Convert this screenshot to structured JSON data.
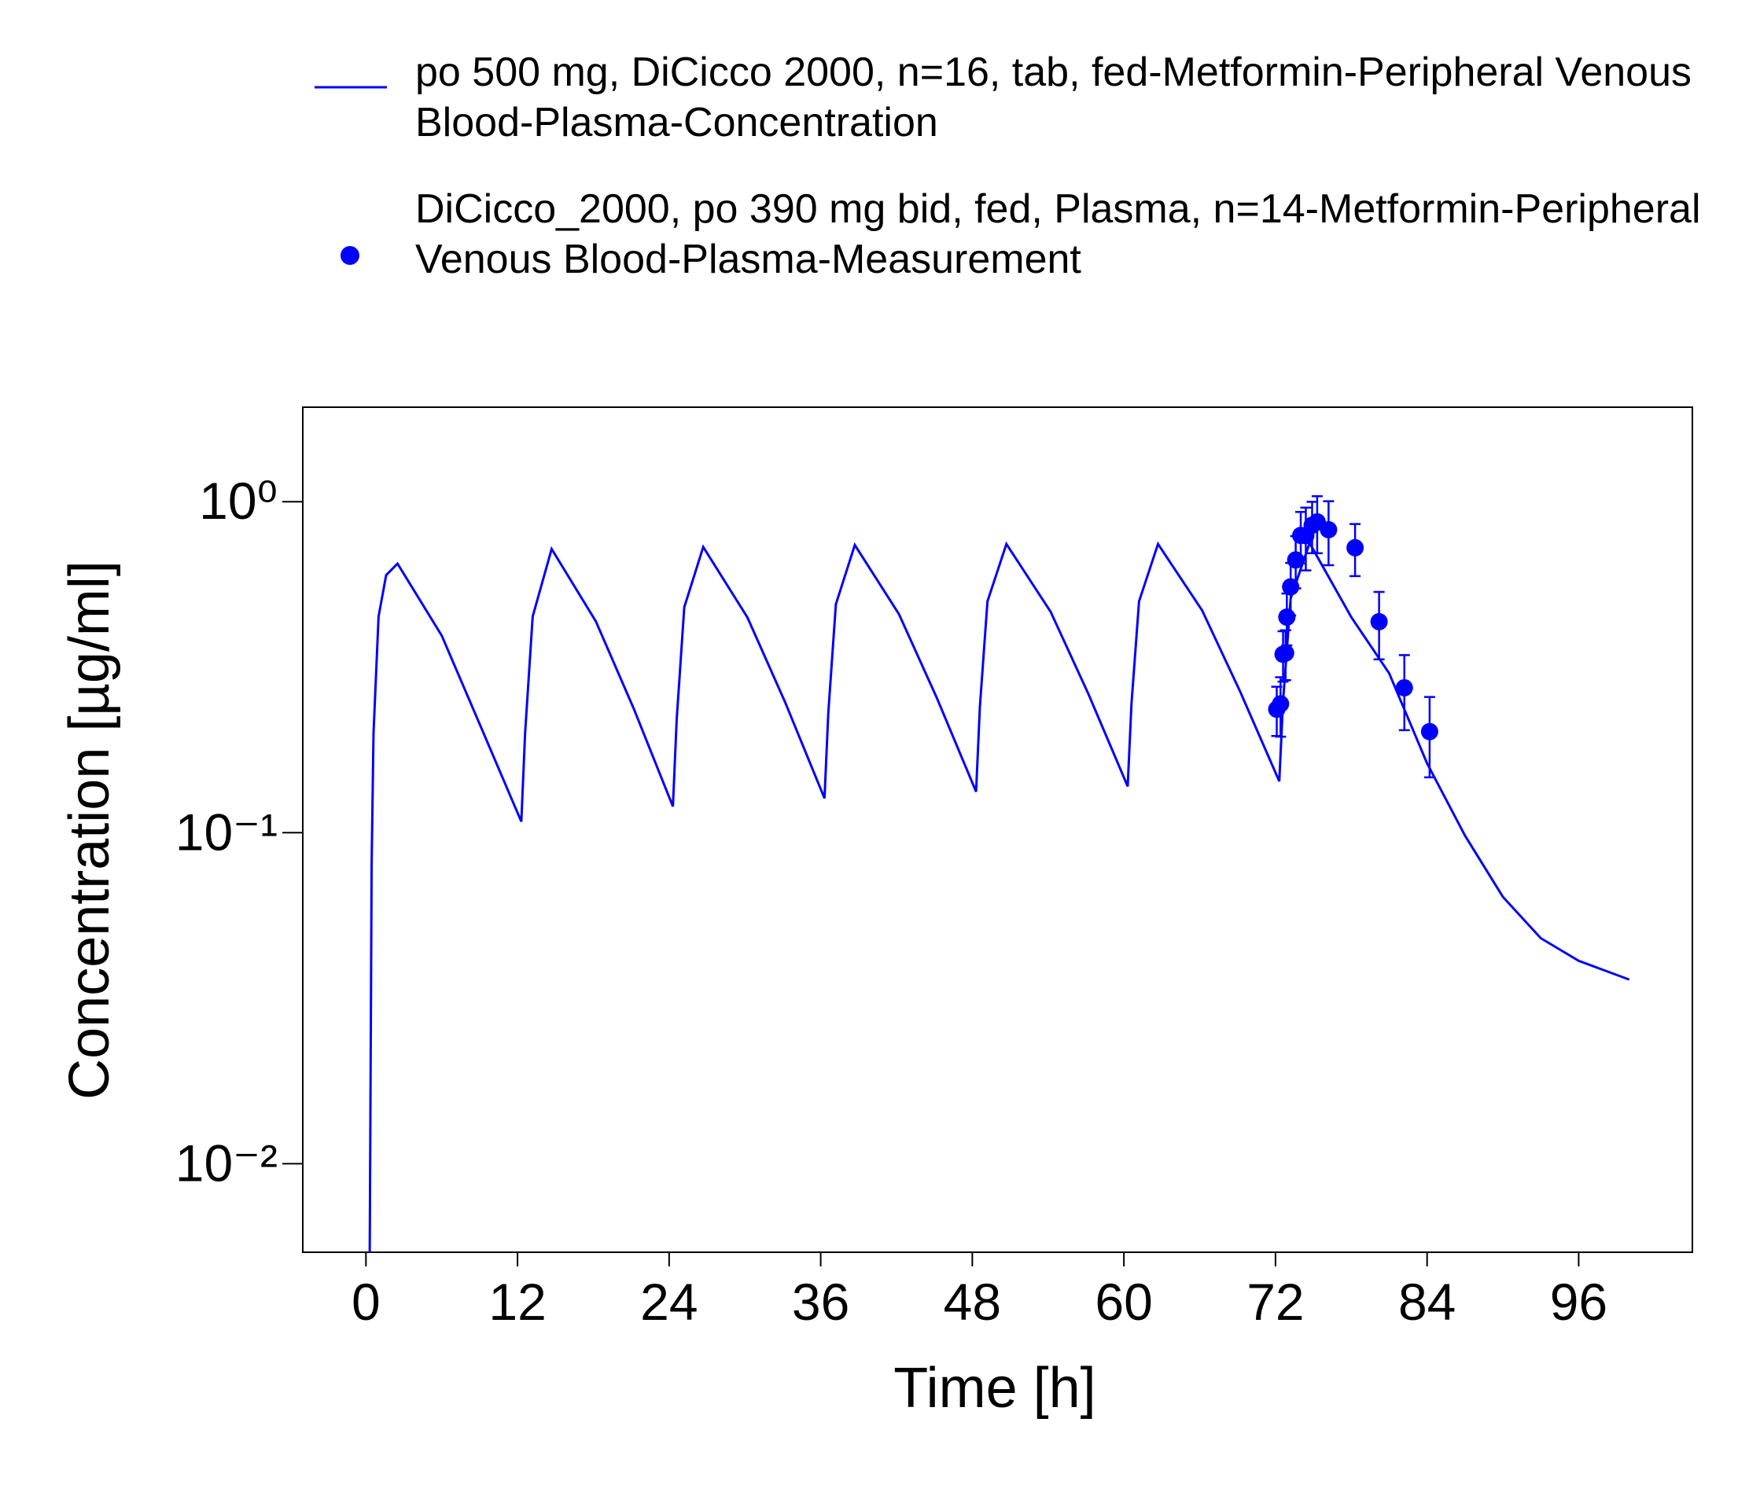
{
  "chart_data": {
    "type": "line",
    "xlabel": "Time [h]",
    "ylabel": "Concentration [µg/ml]",
    "xlim": [
      -5,
      105
    ],
    "xticks": [
      0,
      12,
      24,
      36,
      48,
      60,
      72,
      84,
      96
    ],
    "ylim": [
      0.0054,
      1.93
    ],
    "ylog": true,
    "yticks": [
      {
        "value": 0.01,
        "label": "10⁻²"
      },
      {
        "value": 0.1,
        "label": "10⁻¹"
      },
      {
        "value": 1,
        "label": "10⁰"
      }
    ],
    "series": [
      {
        "name": "po 500 mg, DiCicco 2000, n=16, tab, fed-Metformin-Peripheral Venous Blood-Plasma-Concentration",
        "type": "line",
        "color": "#0000ff",
        "x": [
          0.3,
          0.45,
          0.6,
          1,
          1.6,
          2.5,
          6,
          9,
          12.3,
          12.6,
          13.2,
          14.7,
          18.2,
          21.2,
          24.3,
          24.6,
          25.2,
          26.7,
          30.2,
          33.2,
          36.3,
          36.6,
          37.2,
          38.7,
          42.2,
          45.2,
          48.3,
          48.6,
          49.2,
          50.7,
          54.2,
          57.2,
          60.3,
          60.6,
          61.2,
          62.7,
          66.2,
          69.2,
          72.3,
          72.6,
          73.2,
          74.7,
          78,
          81,
          84,
          87,
          90,
          93,
          96,
          100
        ],
        "values": [
          0.0054,
          0.08,
          0.2,
          0.45,
          0.6,
          0.65,
          0.394,
          0.213,
          0.108,
          0.2,
          0.45,
          0.72,
          0.435,
          0.237,
          0.12,
          0.22,
          0.48,
          0.73,
          0.447,
          0.247,
          0.127,
          0.23,
          0.49,
          0.74,
          0.457,
          0.255,
          0.133,
          0.24,
          0.5,
          0.745,
          0.465,
          0.262,
          0.138,
          0.245,
          0.5,
          0.745,
          0.469,
          0.267,
          0.143,
          0.25,
          0.51,
          0.75,
          0.448,
          0.303,
          0.162,
          0.098,
          0.064,
          0.048,
          0.041,
          0.036
        ]
      },
      {
        "name": "DiCicco_2000, po 390 mg bid, fed, Plasma, n=14-Metformin-Peripheral Venous Blood-Plasma-Measurement",
        "type": "scatter",
        "color": "#0000ff",
        "x": [
          72.1,
          72.4,
          72.6,
          72.8,
          72.9,
          73.2,
          73.6,
          74.0,
          74.4,
          74.9,
          75.3,
          76.2,
          78.3,
          80.2,
          82.2,
          84.2
        ],
        "values": [
          0.236,
          0.245,
          0.346,
          0.349,
          0.448,
          0.553,
          0.667,
          0.791,
          0.79,
          0.849,
          0.869,
          0.823,
          0.726,
          0.434,
          0.274,
          0.202
        ],
        "errors": [
          0.04,
          0.05,
          0.06,
          0.06,
          0.08,
          0.1,
          0.12,
          0.14,
          0.17,
          0.15,
          0.17,
          0.18,
          0.13,
          0.1,
          0.07,
          0.055
        ]
      }
    ]
  }
}
